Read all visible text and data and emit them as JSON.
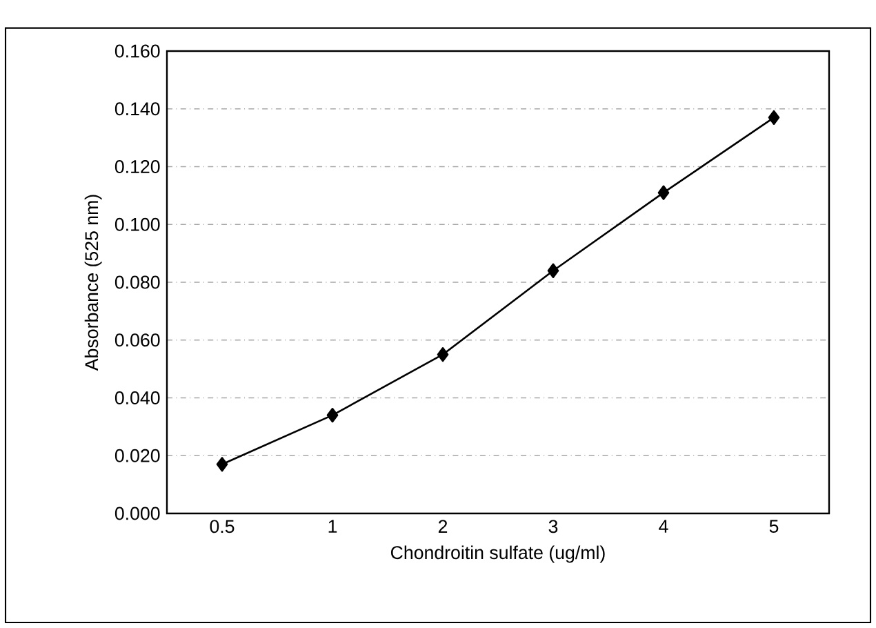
{
  "chart_data": {
    "type": "line",
    "xlabel": "Chondroitin sulfate (ug/ml)",
    "ylabel": "Absorbance (525 nm)",
    "categories": [
      "0.5",
      "1",
      "2",
      "3",
      "4",
      "5"
    ],
    "series": [
      {
        "color": "#000000",
        "values": [
          0.017,
          0.034,
          0.055,
          0.084,
          0.111,
          0.137
        ]
      }
    ],
    "ylim": [
      0,
      0.16
    ],
    "yticks": [
      {
        "value": 0,
        "label": "0.000"
      },
      {
        "value": 0.02,
        "label": "0.020"
      },
      {
        "value": 0.04,
        "label": "0.040"
      },
      {
        "value": 0.06,
        "label": "0.060"
      },
      {
        "value": 0.08,
        "label": "0.080"
      },
      {
        "value": 0.1,
        "label": "0.100"
      },
      {
        "value": 0.12,
        "label": "0.120"
      },
      {
        "value": 0.14,
        "label": "0.140"
      },
      {
        "value": 0.16,
        "label": "0.160"
      }
    ],
    "grid": "y",
    "marker": "diamond",
    "line_style": "solid"
  }
}
